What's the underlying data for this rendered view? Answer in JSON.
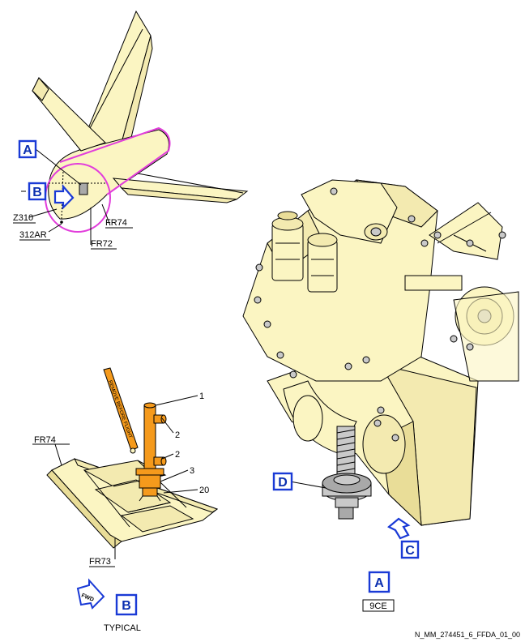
{
  "labels": {
    "view_a_overview": "A",
    "view_b_overview": "B",
    "z310": "Z310",
    "zone_312ar": "312AR",
    "fr74_top": "FR74",
    "fr72": "FR72",
    "fr74_detail": "FR74",
    "fr73": "FR73",
    "item_1": "1",
    "item_2a": "2",
    "item_2b": "2",
    "item_3": "3",
    "item_20": "20",
    "view_b_title": "B",
    "typical": "TYPICAL",
    "fwd": "FWD",
    "view_d": "D",
    "view_c": "C",
    "view_a_title": "A",
    "zone_9ce": "9CE",
    "drawing_ref": "N_MM_274451_6_FFDA_01_00",
    "streamer_text": "REMOVE BEFORE FLIGHT"
  },
  "colors": {
    "callout_blue": "#1a3ad6",
    "part_yellow": "#fbf5c2",
    "tool_orange": "#f59a1c",
    "zone_magenta": "#e23ddb"
  }
}
